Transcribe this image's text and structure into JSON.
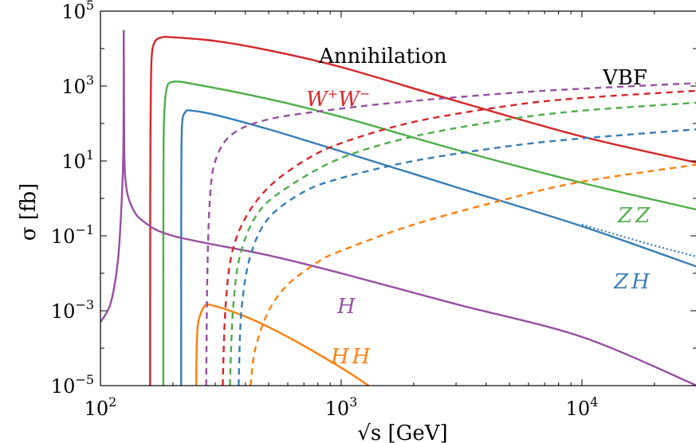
{
  "chart_data": {
    "type": "line",
    "title": "",
    "xlabel": "√s [GeV]",
    "ylabel": "σ [fb]",
    "xscale": "log",
    "yscale": "log",
    "xlim": [
      100,
      30000
    ],
    "ylim": [
      1e-05,
      100000
    ],
    "grid": false,
    "x_ticks": [
      {
        "value": 100,
        "base": "10",
        "exp": "2"
      },
      {
        "value": 1000,
        "base": "10",
        "exp": "3"
      },
      {
        "value": 10000,
        "base": "10",
        "exp": "4"
      }
    ],
    "y_ticks": [
      {
        "value": 1e-05,
        "base": "10",
        "exp": "−5"
      },
      {
        "value": 0.001,
        "base": "10",
        "exp": "−3"
      },
      {
        "value": 0.1,
        "base": "10",
        "exp": "−1"
      },
      {
        "value": 10,
        "base": "10",
        "exp": "1"
      },
      {
        "value": 1000,
        "base": "10",
        "exp": "3"
      },
      {
        "value": 100000,
        "base": "10",
        "exp": "5"
      }
    ],
    "annotations": {
      "annihilation": "Annihilation",
      "vbf": "VBF",
      "ww": {
        "base": "W",
        "sup1": "+",
        "mid": "W",
        "sup2": "−"
      },
      "zz": "ZZ",
      "zh": "ZH",
      "h": "H",
      "hh": "HH"
    },
    "series": [
      {
        "id": "WW-annihilation",
        "color": "#d62728",
        "style": "solid",
        "points": [
          [
            160.8,
            1e-05
          ],
          [
            161,
            1
          ],
          [
            161.5,
            100
          ],
          [
            163,
            5000
          ],
          [
            168,
            15000
          ],
          [
            180,
            20000
          ],
          [
            200,
            20000
          ],
          [
            300,
            16000
          ],
          [
            500,
            9000
          ],
          [
            1000,
            3200
          ],
          [
            3000,
            400
          ],
          [
            10000,
            45
          ],
          [
            30000,
            9
          ]
        ]
      },
      {
        "id": "ZZ-annihilation",
        "color": "#4daf4a",
        "style": "solid",
        "points": [
          [
            182.4,
            1e-05
          ],
          [
            182.6,
            1
          ],
          [
            183.5,
            100
          ],
          [
            188,
            800
          ],
          [
            200,
            1300
          ],
          [
            250,
            1100
          ],
          [
            500,
            450
          ],
          [
            1000,
            150
          ],
          [
            3000,
            20
          ],
          [
            10000,
            2.6
          ],
          [
            30000,
            0.5
          ]
        ]
      },
      {
        "id": "ZH-annihilation",
        "color": "#377eb8",
        "style": "solid",
        "points": [
          [
            216.4,
            1e-05
          ],
          [
            216.6,
            1
          ],
          [
            218,
            80
          ],
          [
            225,
            200
          ],
          [
            240,
            220
          ],
          [
            300,
            170
          ],
          [
            500,
            70
          ],
          [
            1000,
            18
          ],
          [
            3000,
            2
          ],
          [
            10000,
            0.18
          ],
          [
            30000,
            0.015
          ]
        ]
      },
      {
        "id": "ZH-annihilation-dotted",
        "color": "#377eb8",
        "style": "dotted",
        "points": [
          [
            10000,
            0.2
          ],
          [
            20000,
            0.055
          ],
          [
            30000,
            0.028
          ]
        ]
      },
      {
        "id": "H-annihilation",
        "color": "#984ea3",
        "style": "solid",
        "points": [
          [
            100,
            0.0005
          ],
          [
            110,
            0.0015
          ],
          [
            118,
            0.02
          ],
          [
            122,
            0.5
          ],
          [
            124.5,
            20
          ],
          [
            125,
            30000
          ],
          [
            125.6,
            20
          ],
          [
            128,
            2
          ],
          [
            135,
            0.6
          ],
          [
            150,
            0.25
          ],
          [
            200,
            0.1
          ],
          [
            500,
            0.03
          ],
          [
            1000,
            0.01
          ],
          [
            3000,
            0.0015
          ],
          [
            10000,
            0.0002
          ],
          [
            30000,
            1e-05
          ]
        ]
      },
      {
        "id": "HH-annihilation",
        "color": "#ff7f0e",
        "style": "solid",
        "points": [
          [
            250,
            1e-05
          ],
          [
            251,
            0.0001
          ],
          [
            255,
            0.0005
          ],
          [
            270,
            0.0013
          ],
          [
            290,
            0.0014
          ],
          [
            400,
            0.0007
          ],
          [
            600,
            0.0002
          ],
          [
            1000,
            3e-05
          ],
          [
            1300,
            1e-05
          ]
        ]
      },
      {
        "id": "WW-VBF",
        "color": "#d62728",
        "style": "dashed",
        "points": [
          [
            322,
            1e-05
          ],
          [
            330,
            0.001
          ],
          [
            350,
            0.03
          ],
          [
            400,
            0.3
          ],
          [
            500,
            2
          ],
          [
            700,
            10
          ],
          [
            1000,
            30
          ],
          [
            2000,
            110
          ],
          [
            5000,
            300
          ],
          [
            10000,
            480
          ],
          [
            30000,
            750
          ]
        ]
      },
      {
        "id": "ZZ-VBF",
        "color": "#4daf4a",
        "style": "dashed",
        "points": [
          [
            345,
            1e-05
          ],
          [
            355,
            0.001
          ],
          [
            380,
            0.03
          ],
          [
            450,
            0.4
          ],
          [
            600,
            2
          ],
          [
            1000,
            12
          ],
          [
            2000,
            45
          ],
          [
            5000,
            130
          ],
          [
            10000,
            220
          ],
          [
            30000,
            360
          ]
        ]
      },
      {
        "id": "ZH-VBF",
        "color": "#377eb8",
        "style": "dashed",
        "points": [
          [
            375,
            1e-05
          ],
          [
            385,
            0.001
          ],
          [
            420,
            0.03
          ],
          [
            500,
            0.3
          ],
          [
            700,
            1.5
          ],
          [
            1000,
            3.5
          ],
          [
            2000,
            10
          ],
          [
            5000,
            25
          ],
          [
            10000,
            40
          ],
          [
            30000,
            70
          ]
        ]
      },
      {
        "id": "H-VBF",
        "color": "#984ea3",
        "style": "dashed",
        "points": [
          [
            275,
            1e-05
          ],
          [
            278,
            0.01
          ],
          [
            285,
            1
          ],
          [
            300,
            10
          ],
          [
            350,
            50
          ],
          [
            500,
            130
          ],
          [
            1000,
            250
          ],
          [
            2000,
            400
          ],
          [
            5000,
            650
          ],
          [
            10000,
            850
          ],
          [
            30000,
            1200
          ]
        ]
      },
      {
        "id": "HH-VBF",
        "color": "#ff7f0e",
        "style": "dashed",
        "points": [
          [
            420,
            1e-05
          ],
          [
            440,
            0.0001
          ],
          [
            500,
            0.001
          ],
          [
            600,
            0.005
          ],
          [
            800,
            0.02
          ],
          [
            1000,
            0.04
          ],
          [
            2000,
            0.2
          ],
          [
            5000,
            1
          ],
          [
            10000,
            2.8
          ],
          [
            30000,
            8
          ]
        ]
      }
    ]
  }
}
